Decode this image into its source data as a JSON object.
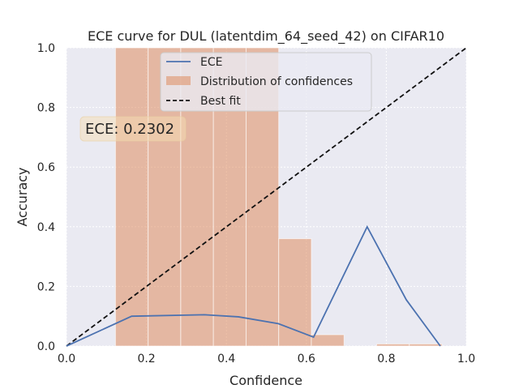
{
  "chart_data": {
    "type": "line",
    "title": "ECE curve for DUL (latentdim_64_seed_42) on CIFAR10",
    "xlabel": "Confidence",
    "ylabel": "Accuracy",
    "xlim": [
      0.0,
      1.0
    ],
    "ylim": [
      0.0,
      1.0
    ],
    "xticks": [
      "0.0",
      "0.2",
      "0.4",
      "0.6",
      "0.8",
      "1.0"
    ],
    "yticks": [
      "0.0",
      "0.2",
      "0.4",
      "0.6",
      "0.8",
      "1.0"
    ],
    "grid": true,
    "legend_position": "top-center",
    "annotation": "ECE: 0.2302",
    "series": [
      {
        "name": "ECE",
        "kind": "line",
        "color": "#4c72b0",
        "x": [
          0.0,
          0.163,
          0.345,
          0.43,
          0.53,
          0.618,
          0.752,
          0.85,
          0.935
        ],
        "y": [
          0.0,
          0.1,
          0.105,
          0.098,
          0.075,
          0.03,
          0.4,
          0.155,
          0.0
        ]
      },
      {
        "name": "Distribution of confidences",
        "kind": "histogram",
        "color": "#dd8452",
        "opacity": 0.5,
        "bin_edges": [
          0.1225,
          0.2042,
          0.2858,
          0.3675,
          0.4492,
          0.5308,
          0.6125,
          0.6942,
          0.7758,
          0.8575,
          0.9392
        ],
        "values": [
          1.0,
          1.0,
          1.0,
          1.0,
          1.0,
          0.36,
          0.038,
          0.0,
          0.007,
          0.007
        ]
      },
      {
        "name": "Best fit",
        "kind": "line",
        "style": "dashed",
        "color": "#111111",
        "x": [
          0.0,
          1.0
        ],
        "y": [
          0.0,
          1.0
        ]
      }
    ]
  }
}
